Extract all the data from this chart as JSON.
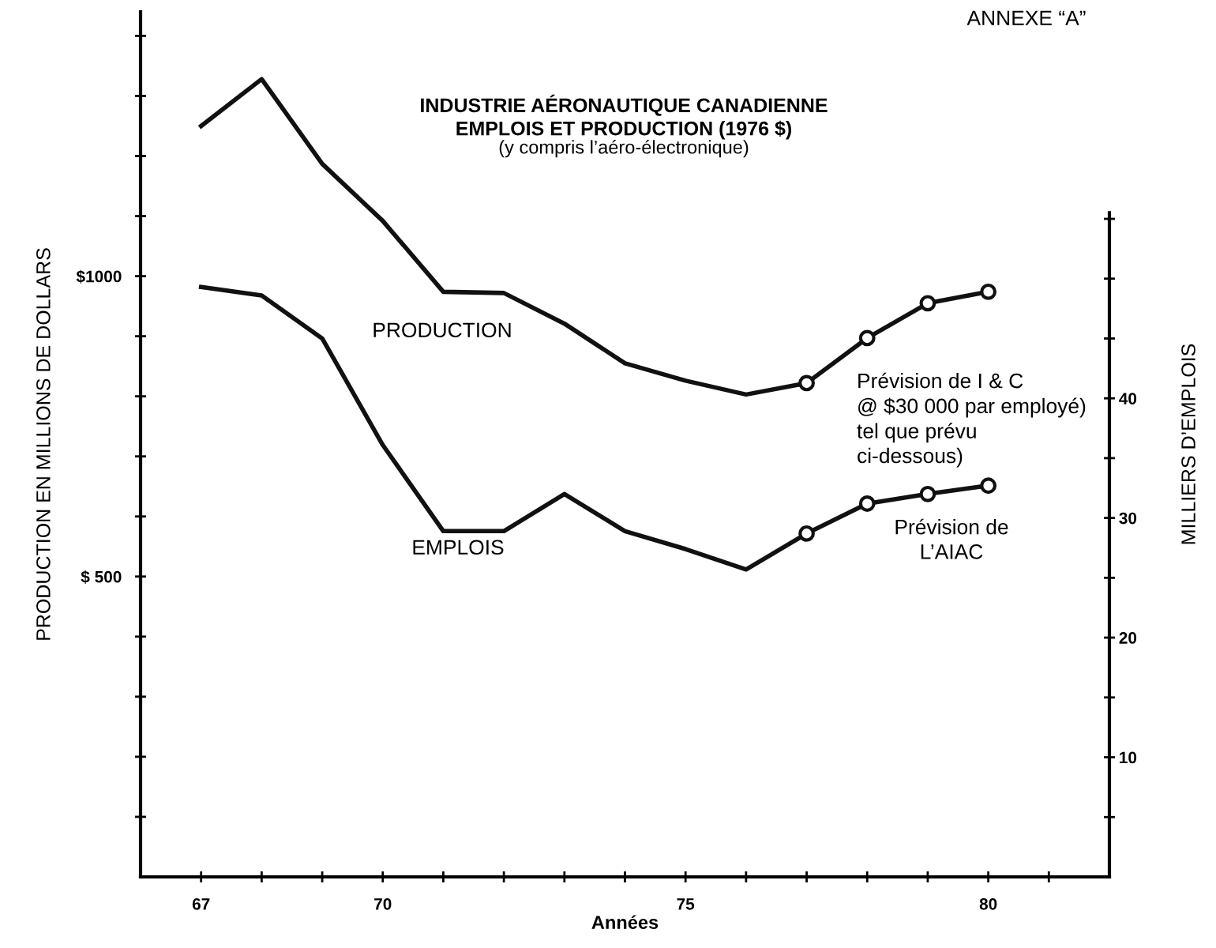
{
  "chart_data": {
    "type": "line",
    "title": "INDUSTRIE AÉRONAUTIQUE CANADIENNE\nEMPLOIS ET PRODUCTION (1976 $)",
    "subtitle": "(y compris l’aéro-électronique)",
    "xlabel": "Années",
    "ylabel": "PRODUCTION EN MILLIONS DE DOLLARS",
    "y2label": "MILLIERS D’EMPLOIS",
    "series": [
      {
        "color": "#111111",
        "marker": "none",
        "x": [
          67,
          68,
          69,
          70,
          71,
          72,
          73,
          74,
          75,
          76,
          77
        ],
        "values": [
          1250,
          1328,
          1187,
          1092,
          974,
          972,
          921,
          855,
          826,
          803,
          822
        ]
      },
      {
        "color": "#111111",
        "marker": "circle",
        "x": [
          77,
          78,
          79,
          80
        ],
        "values": [
          822,
          897,
          955,
          974
        ]
      },
      {
        "color": "#111111",
        "marker": "none",
        "axis": "y2",
        "x": [
          67,
          68,
          69,
          70,
          71,
          72,
          73,
          74,
          75,
          76,
          77
        ],
        "values": [
          49.3,
          48.6,
          45.0,
          36.1,
          28.9,
          28.9,
          32.0,
          28.9,
          27.4,
          25.7,
          28.7
        ]
      },
      {
        "color": "#111111",
        "marker": "circle",
        "axis": "y2",
        "x": [
          77,
          78,
          79,
          80
        ],
        "values": [
          28.7,
          31.2,
          32.0,
          32.7
        ]
      }
    ],
    "xlim": [
      66,
      82
    ],
    "xticks": [
      {
        "value": 67,
        "label": "67"
      },
      {
        "value": 68,
        "label": null
      },
      {
        "value": 69,
        "label": null
      },
      {
        "value": 70,
        "label": "70"
      },
      {
        "value": 71,
        "label": null
      },
      {
        "value": 72,
        "label": null
      },
      {
        "value": 73,
        "label": null
      },
      {
        "value": 74,
        "label": null
      },
      {
        "value": 75,
        "label": "75"
      },
      {
        "value": 76,
        "label": null
      },
      {
        "value": 77,
        "label": null
      },
      {
        "value": 78,
        "label": null
      },
      {
        "value": 79,
        "label": null
      },
      {
        "value": 80,
        "label": "80"
      },
      {
        "value": 81,
        "label": null
      }
    ],
    "ylim": [
      0,
      1440
    ],
    "yticks": [
      {
        "value": 100,
        "label": null
      },
      {
        "value": 200,
        "label": null
      },
      {
        "value": 300,
        "label": null
      },
      {
        "value": 400,
        "label": null
      },
      {
        "value": 500,
        "label": "$ 500"
      },
      {
        "value": 600,
        "label": null
      },
      {
        "value": 700,
        "label": null
      },
      {
        "value": 800,
        "label": null
      },
      {
        "value": 900,
        "label": null
      },
      {
        "value": 1000,
        "label": "$1000"
      },
      {
        "value": 1100,
        "label": null
      },
      {
        "value": 1200,
        "label": null
      },
      {
        "value": 1300,
        "label": null
      },
      {
        "value": 1400,
        "label": null
      }
    ],
    "y2lim": [
      0,
      72.3
    ],
    "y2ticks": [
      {
        "value": 5,
        "label": null
      },
      10,
      {
        "value": 15,
        "label": null
      },
      20,
      {
        "value": 25,
        "label": null
      },
      30,
      {
        "value": 35,
        "label": null
      },
      40,
      {
        "value": 45,
        "label": null
      },
      {
        "value": 50,
        "label": null
      },
      {
        "value": 55,
        "label": null
      }
    ],
    "line_style": "solid",
    "grid": false,
    "legend": false,
    "annotations": [
      "PRODUCTION",
      "EMPLOIS",
      "Prévision de I & C\n@ $30 000 par employé)\ntel que prévu\nci-dessous)",
      "Prévision de\nL’AIAC",
      "ANNEXE “A”"
    ]
  }
}
